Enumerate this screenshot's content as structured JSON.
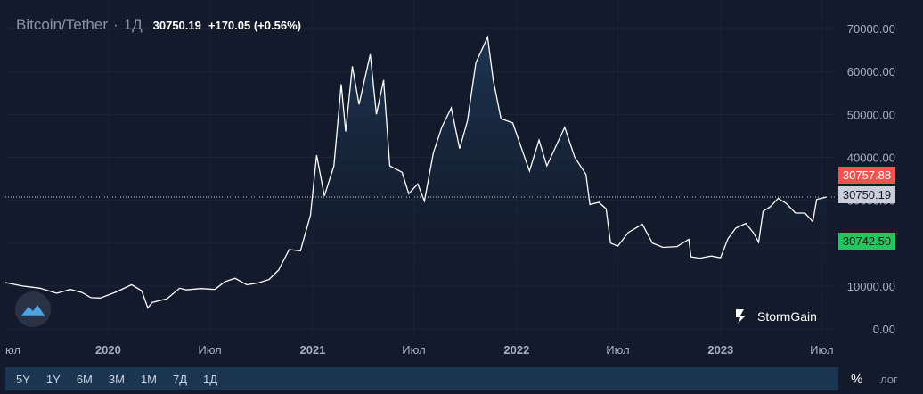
{
  "header": {
    "symbol": "Bitcoin/Tether",
    "separator": "·",
    "resolution": "1Д",
    "last_price": "30750.19",
    "change": "+170.05 (+0.56%)"
  },
  "price_tags": {
    "ask": "30757.88",
    "last": "30750.19",
    "bid": "30742.50"
  },
  "brand": {
    "name": "StormGain"
  },
  "toolbar": {
    "ranges": [
      "5Y",
      "1Y",
      "6M",
      "3M",
      "1M",
      "7Д",
      "1Д"
    ],
    "percent_label": "%",
    "log_label": "лог"
  },
  "colors": {
    "background": "#131a2b",
    "line": "#ffffff",
    "ask": "#ef5350",
    "bid": "#22c55e",
    "last": "#c9ced8"
  },
  "chart_data": {
    "type": "area",
    "ylim": [
      0,
      70000
    ],
    "y_ticks": [
      "70000.00",
      "60000.00",
      "50000.00",
      "40000.00",
      "30000.00",
      "20000.00",
      "10000.00",
      "0.00"
    ],
    "x_ticks": [
      "юл",
      "2020",
      "Июл",
      "2021",
      "Июл",
      "2022",
      "Июл",
      "2023",
      "Июл"
    ],
    "last_value": 30750.19,
    "series": [
      {
        "x": [
          "2019-07-01",
          "2019-08-01",
          "2019-09-01",
          "2019-10-01",
          "2019-10-25",
          "2019-11-15",
          "2019-12-01",
          "2019-12-18",
          "2020-01-15",
          "2020-02-12",
          "2020-03-01",
          "2020-03-12",
          "2020-03-20",
          "2020-04-15",
          "2020-05-08",
          "2020-05-20",
          "2020-06-15",
          "2020-07-10",
          "2020-07-28",
          "2020-08-15",
          "2020-09-05",
          "2020-09-25",
          "2020-10-15",
          "2020-11-01",
          "2020-11-20",
          "2020-12-10",
          "2020-12-28",
          "2021-01-08",
          "2021-01-22",
          "2021-02-08",
          "2021-02-21",
          "2021-03-01",
          "2021-03-13",
          "2021-03-25",
          "2021-04-14",
          "2021-04-25",
          "2021-05-08",
          "2021-05-19",
          "2021-06-10",
          "2021-06-22",
          "2021-07-08",
          "2021-07-20",
          "2021-08-05",
          "2021-08-20",
          "2021-09-06",
          "2021-09-21",
          "2021-10-05",
          "2021-10-20",
          "2021-11-10",
          "2021-11-20",
          "2021-12-04",
          "2021-12-25",
          "2022-01-10",
          "2022-01-24",
          "2022-02-10",
          "2022-02-24",
          "2022-03-28",
          "2022-04-15",
          "2022-05-05",
          "2022-05-12",
          "2022-05-28",
          "2022-06-10",
          "2022-06-18",
          "2022-07-01",
          "2022-07-20",
          "2022-08-14",
          "2022-09-01",
          "2022-09-20",
          "2022-10-15",
          "2022-11-05",
          "2022-11-09",
          "2022-11-25",
          "2022-12-15",
          "2023-01-01",
          "2023-01-14",
          "2023-01-28",
          "2023-02-15",
          "2023-03-01",
          "2023-03-10",
          "2023-03-18",
          "2023-03-31",
          "2023-04-14",
          "2023-04-28",
          "2023-05-15",
          "2023-06-01",
          "2023-06-15",
          "2023-06-22",
          "2023-07-01",
          "2023-07-10"
        ],
        "y": [
          10800,
          10000,
          9500,
          8300,
          9200,
          8500,
          7300,
          7200,
          8600,
          10300,
          8900,
          4900,
          6200,
          7000,
          9500,
          9100,
          9400,
          9200,
          11000,
          11800,
          10300,
          10700,
          11500,
          13700,
          18500,
          18200,
          26500,
          40500,
          31000,
          38000,
          57000,
          46000,
          61200,
          52300,
          64000,
          50000,
          58000,
          38000,
          36500,
          31500,
          33800,
          29800,
          41000,
          47000,
          51500,
          42000,
          48500,
          62000,
          68000,
          58000,
          49000,
          48000,
          42000,
          36800,
          44000,
          38000,
          47000,
          40000,
          36000,
          29000,
          29500,
          28000,
          20000,
          19300,
          22500,
          24400,
          20000,
          19000,
          19200,
          20900,
          16800,
          16500,
          17000,
          16600,
          21000,
          23500,
          24600,
          22400,
          20200,
          27400,
          28500,
          30400,
          29300,
          27000,
          27000,
          25000,
          30200,
          30500,
          30750.19
        ]
      }
    ]
  }
}
